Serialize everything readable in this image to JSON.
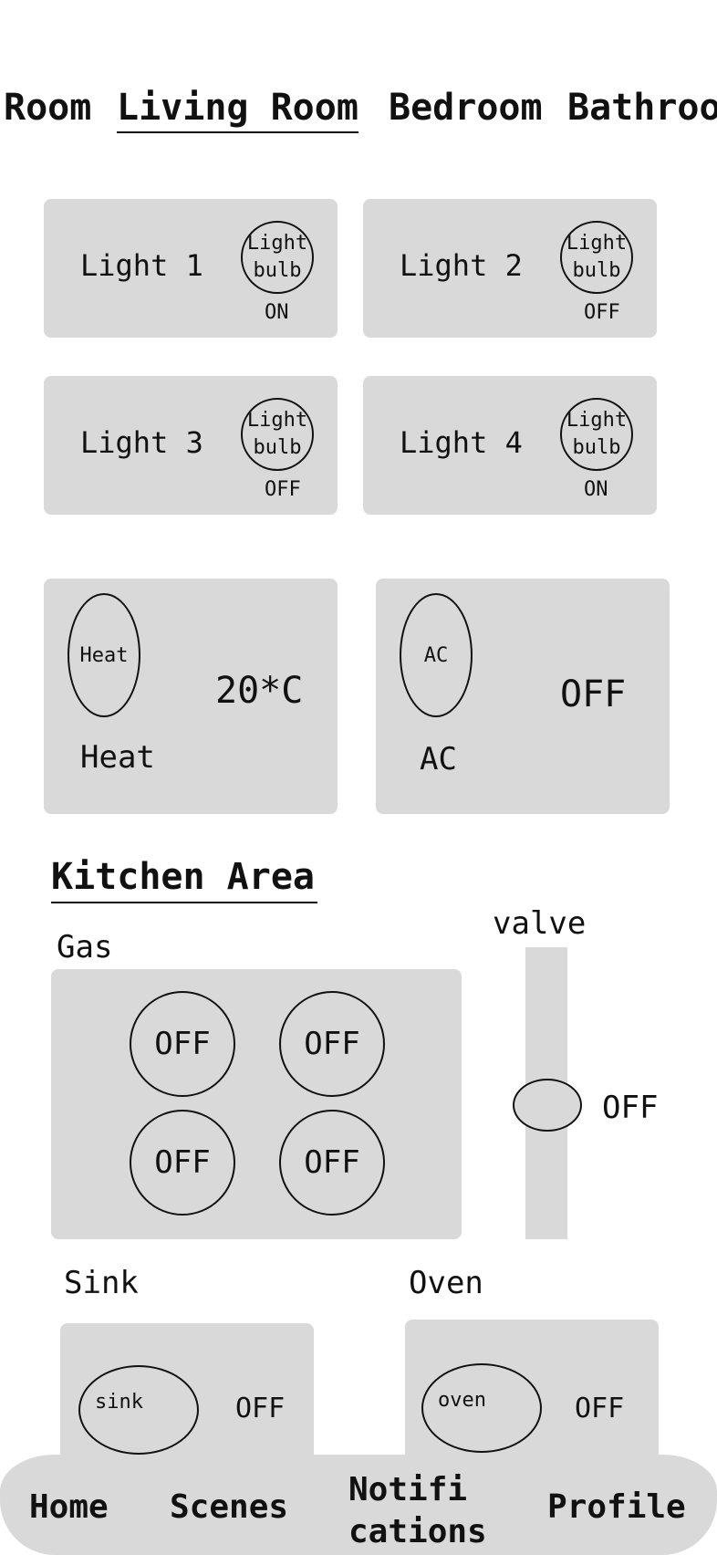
{
  "tabs": [
    {
      "label": "Room"
    },
    {
      "label": "Living Room"
    },
    {
      "label": "Bedroom"
    },
    {
      "label": "Bathroo"
    }
  ],
  "lights": [
    {
      "name": "Light 1",
      "icon_text": "Light bulb",
      "state": "ON"
    },
    {
      "name": "Light 2",
      "icon_text": "Light bulb",
      "state": "OFF"
    },
    {
      "name": "Light 3",
      "icon_text": "Light bulb",
      "state": "OFF"
    },
    {
      "name": "Light 4",
      "icon_text": "Light bulb",
      "state": "ON"
    }
  ],
  "heat": {
    "icon_text": "Heat",
    "label": "Heat",
    "value": "20*C"
  },
  "ac": {
    "icon_text": "AC",
    "label": "AC",
    "value": "OFF"
  },
  "kitchen": {
    "title": "Kitchen Area",
    "gas_label": "Gas",
    "burners": [
      "OFF",
      "OFF",
      "OFF",
      "OFF"
    ],
    "valve_label": "valve",
    "valve_state": "OFF",
    "sink_label": "Sink",
    "sink_icon_text": "sink",
    "sink_state": "OFF",
    "oven_label": "Oven",
    "oven_icon_text": "oven",
    "oven_state": "OFF"
  },
  "nav": {
    "home": "Home",
    "scenes": "Scenes",
    "notifications_line1": "Notifi",
    "notifications_line2": "cations",
    "profile": "Profile"
  }
}
